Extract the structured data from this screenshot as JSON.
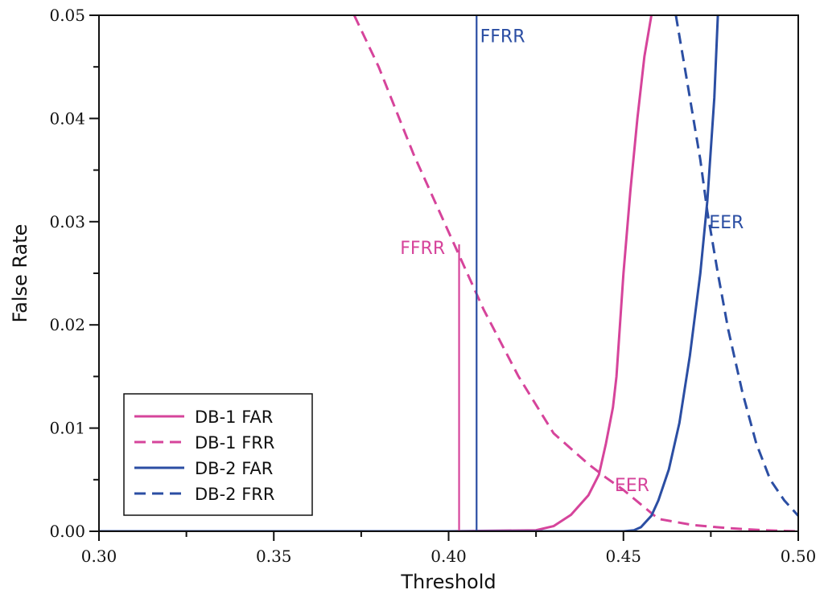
{
  "chart_data": {
    "type": "line",
    "title": "",
    "xlabel": "Threshold",
    "ylabel": "False Rate",
    "xlim": [
      0.3,
      0.5
    ],
    "ylim": [
      0.0,
      0.05
    ],
    "x_ticks": [
      0.3,
      0.35,
      0.4,
      0.45,
      0.5
    ],
    "x_tick_labels": [
      "0.30",
      "0.35",
      "0.40",
      "0.45",
      "0.50"
    ],
    "y_ticks": [
      0.0,
      0.01,
      0.02,
      0.03,
      0.04,
      0.05
    ],
    "y_tick_labels": [
      "0.00",
      "0.01",
      "0.02",
      "0.03",
      "0.04",
      "0.05"
    ],
    "grid": false,
    "legend_position": "bottom-left",
    "colors": {
      "db1": "#d6449b",
      "db2": "#2b4ea3"
    },
    "series": [
      {
        "name": "DB-1 FAR",
        "color": "#d6449b",
        "dash": false,
        "x": [
          0.3,
          0.4,
          0.425,
          0.43,
          0.435,
          0.44,
          0.443,
          0.445,
          0.447,
          0.448,
          0.45,
          0.452,
          0.454,
          0.456,
          0.458
        ],
        "y": [
          0.0,
          0.0,
          0.0001,
          0.0005,
          0.0016,
          0.0035,
          0.0055,
          0.0085,
          0.012,
          0.015,
          0.025,
          0.033,
          0.04,
          0.046,
          0.05
        ]
      },
      {
        "name": "DB-1 FRR",
        "color": "#d6449b",
        "dash": true,
        "x": [
          0.373,
          0.38,
          0.39,
          0.4,
          0.41,
          0.42,
          0.43,
          0.44,
          0.445,
          0.45,
          0.46,
          0.47,
          0.48,
          0.49,
          0.5
        ],
        "y": [
          0.05,
          0.045,
          0.0365,
          0.029,
          0.0215,
          0.015,
          0.0095,
          0.0065,
          0.0052,
          0.004,
          0.0012,
          0.0006,
          0.0003,
          0.0001,
          0.0
        ]
      },
      {
        "name": "DB-2 FAR",
        "color": "#2b4ea3",
        "dash": false,
        "x": [
          0.3,
          0.45,
          0.453,
          0.455,
          0.458,
          0.46,
          0.463,
          0.466,
          0.469,
          0.472,
          0.474,
          0.476,
          0.477
        ],
        "y": [
          0.0,
          0.0,
          0.0001,
          0.0004,
          0.0015,
          0.003,
          0.006,
          0.0105,
          0.017,
          0.025,
          0.032,
          0.042,
          0.05
        ]
      },
      {
        "name": "DB-2 FRR",
        "color": "#2b4ea3",
        "dash": true,
        "x": [
          0.465,
          0.468,
          0.472,
          0.474,
          0.477,
          0.48,
          0.484,
          0.488,
          0.492,
          0.496,
          0.5
        ],
        "y": [
          0.05,
          0.044,
          0.036,
          0.031,
          0.025,
          0.0195,
          0.0135,
          0.0085,
          0.005,
          0.003,
          0.0015
        ]
      }
    ],
    "reference_lines": [
      {
        "x": 0.403,
        "y_from": 0.0,
        "y_to": 0.0278,
        "color": "#d6449b"
      },
      {
        "x": 0.408,
        "y_from": 0.0,
        "y_to": 0.05,
        "color": "#2b4ea3"
      }
    ],
    "annotations": [
      {
        "text": "FFRR",
        "x": 0.409,
        "y": 0.048,
        "color": "#2b4ea3",
        "anchor": "start"
      },
      {
        "text": "FFRR",
        "x": 0.399,
        "y": 0.0275,
        "color": "#d6449b",
        "anchor": "end"
      },
      {
        "text": "EER",
        "x": 0.4745,
        "y": 0.03,
        "color": "#2b4ea3",
        "anchor": "start"
      },
      {
        "text": "EER",
        "x": 0.4475,
        "y": 0.0045,
        "color": "#d6449b",
        "anchor": "start"
      }
    ]
  }
}
